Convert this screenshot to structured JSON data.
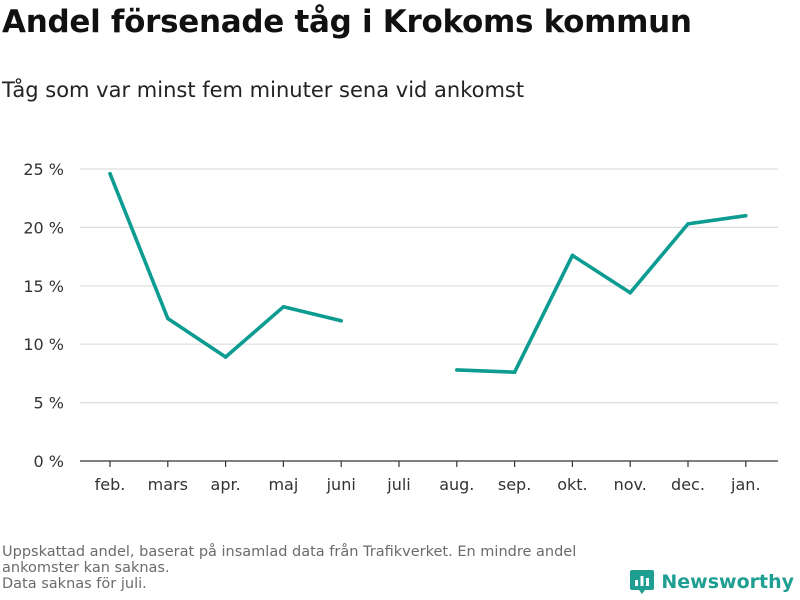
{
  "header": {
    "title": "Andel försenade tåg i Krokoms kommun",
    "subtitle": "Tåg som var minst fem minuter sena vid ankomst"
  },
  "footnote": {
    "line1": "Uppskattad andel, baserat på insamlad data från Trafikverket. En mindre andel ankomster kan saknas.",
    "line2": "Data saknas för juli."
  },
  "brand": {
    "name": "Newsworthy",
    "icon": "newsworthy-logo-icon",
    "color": "#1f9e92"
  },
  "chart_data": {
    "type": "line",
    "categories": [
      "feb.",
      "mars",
      "apr.",
      "maj",
      "juni",
      "juli",
      "aug.",
      "sep.",
      "okt.",
      "nov.",
      "dec.",
      "jan."
    ],
    "series": [
      {
        "values": [
          24.6,
          12.2,
          8.9,
          13.2,
          12.0,
          null,
          7.8,
          7.6,
          17.6,
          14.4,
          20.3,
          21.0
        ],
        "color": "#0d9c91"
      }
    ],
    "ylim": [
      0,
      25
    ],
    "yticks": [
      0,
      5,
      10,
      15,
      20,
      25
    ],
    "ytick_labels": [
      "0 %",
      "5 %",
      "10 %",
      "15 %",
      "20 %",
      "25 %"
    ],
    "xlabel": "",
    "ylabel": "",
    "grid": "horizontal",
    "gridline_color": "#dddddd"
  }
}
